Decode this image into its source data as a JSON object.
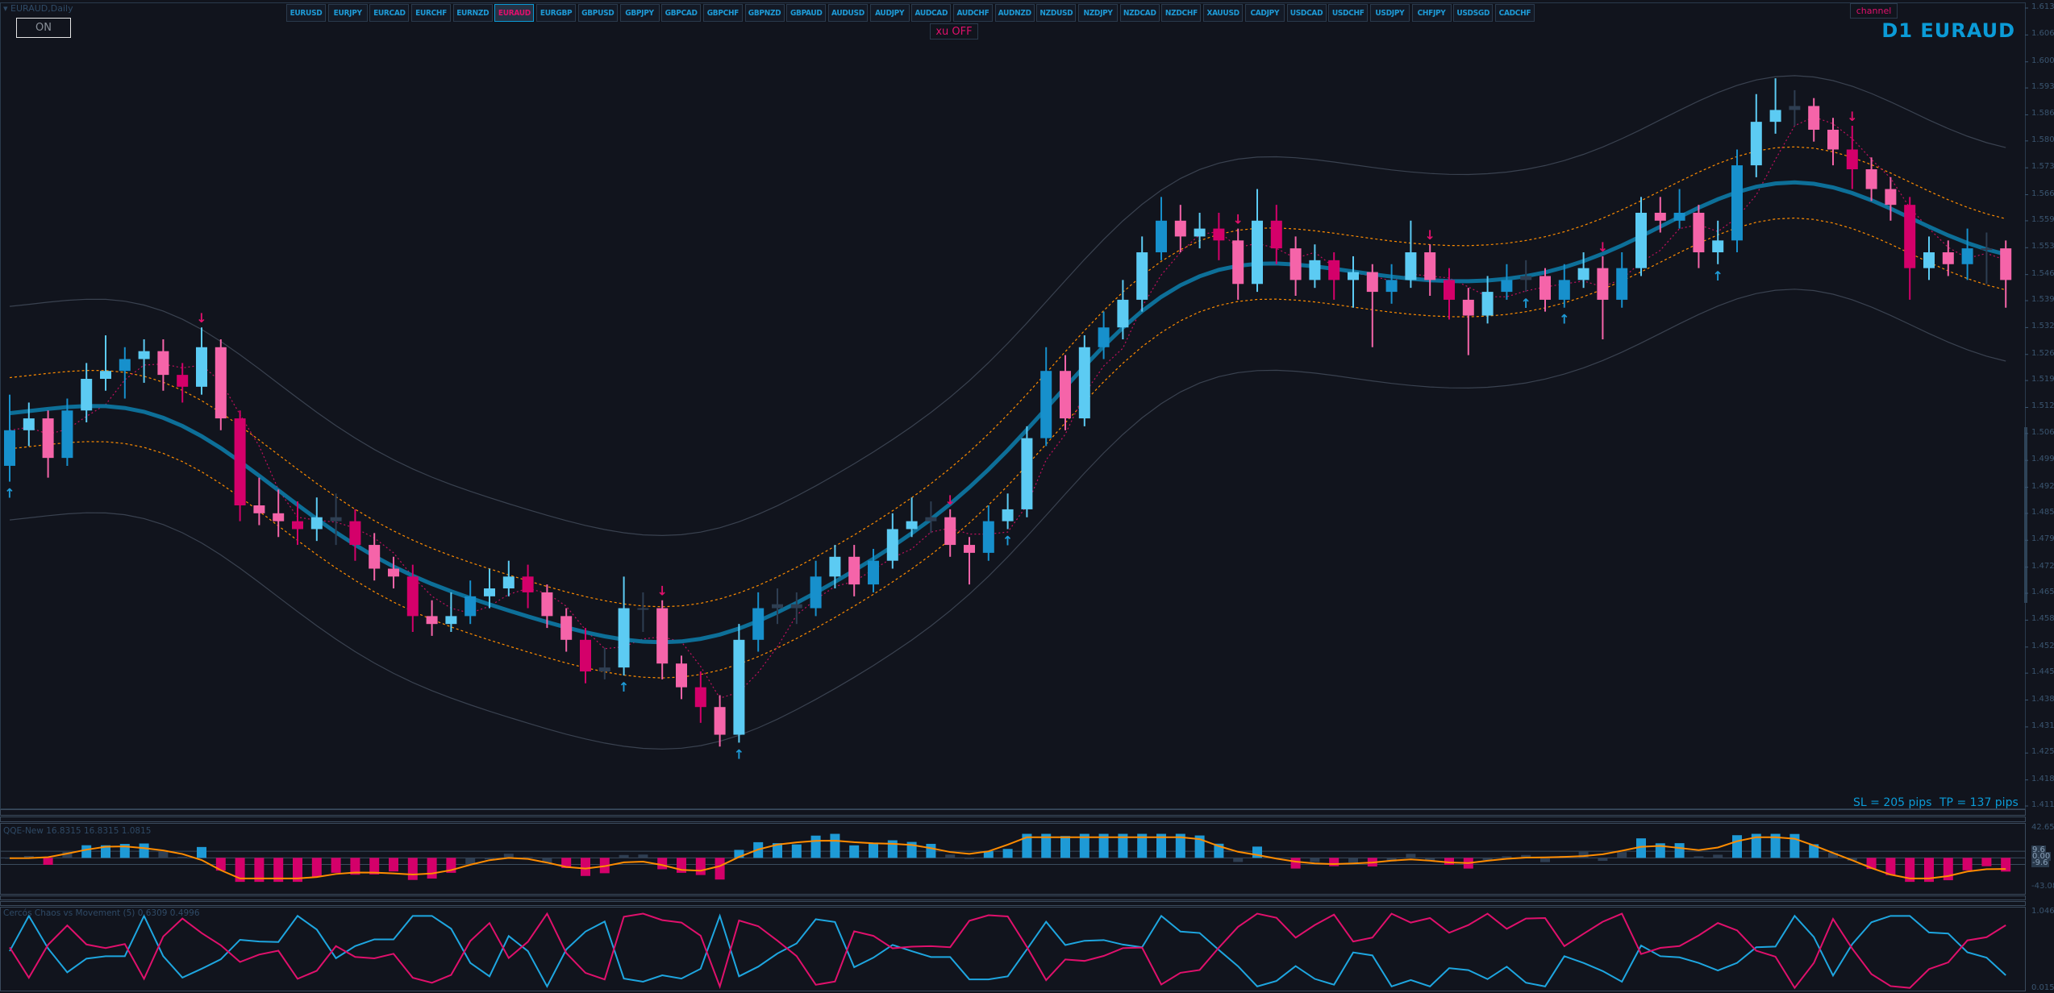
{
  "window": {
    "title": "EURAUD,Daily",
    "on_button": "ON",
    "xu_button": "xu OFF",
    "channel_button": "channel",
    "timeframe_label": "D1  EURAUD"
  },
  "symbols": [
    "EURUSD",
    "EURJPY",
    "EURCAD",
    "EURCHF",
    "EURNZD",
    "EURAUD",
    "EURGBP",
    "GBPUSD",
    "GBPJPY",
    "GBPCAD",
    "GBPCHF",
    "GBPNZD",
    "GBPAUD",
    "AUDUSD",
    "AUDJPY",
    "AUDCAD",
    "AUDCHF",
    "AUDNZD",
    "NZDUSD",
    "NZDJPY",
    "NZDCAD",
    "NZDCHF",
    "XAUUSD",
    "CADJPY",
    "USDCAD",
    "USDCHF",
    "USDJPY",
    "CHFJPY",
    "USDSGD",
    "CADCHF"
  ],
  "active_symbol": "EURAUD",
  "info": {
    "sl": "SL = 205 pips",
    "tp": "TP = 137 pips"
  },
  "colors": {
    "bg": "#11141d",
    "bull": "#5ccbf3",
    "bull_dark": "#1790cc",
    "bear": "#f564a9",
    "bear_dark": "#d4006a",
    "neutral": "#2e3e52",
    "mid": "#0d6f98",
    "orange": "#ff8c00",
    "accent": "#0b9bd7"
  },
  "chart_data": [
    {
      "type": "candlestick",
      "title": "EURAUD,Daily",
      "ylim": [
        1.41197,
        1.61377
      ],
      "y_ticks": [
        "1.61377",
        "1.60697",
        "1.60017",
        "1.59357",
        "1.58677",
        "1.58017",
        "1.57337",
        "1.56657",
        "1.55997",
        "1.55317",
        "1.54637",
        "1.53977",
        "1.53297",
        "1.52617",
        "1.51957",
        "1.51277",
        "1.50617",
        "1.49937",
        "1.49257",
        "1.48597",
        "1.47917",
        "1.47237",
        "1.46577",
        "1.45897",
        "1.45217",
        "1.44557",
        "1.43877",
        "1.43197",
        "1.42537",
        "1.41857",
        "1.41197"
      ],
      "ohlc": [
        [
          1.498,
          1.516,
          1.494,
          1.507
        ],
        [
          1.507,
          1.514,
          1.503,
          1.51
        ],
        [
          1.51,
          1.512,
          1.495,
          1.5
        ],
        [
          1.5,
          1.515,
          1.498,
          1.512
        ],
        [
          1.512,
          1.524,
          1.509,
          1.52
        ],
        [
          1.52,
          1.531,
          1.517,
          1.522
        ],
        [
          1.522,
          1.528,
          1.515,
          1.525
        ],
        [
          1.525,
          1.53,
          1.519,
          1.527
        ],
        [
          1.527,
          1.53,
          1.517,
          1.521
        ],
        [
          1.521,
          1.524,
          1.514,
          1.518
        ],
        [
          1.518,
          1.533,
          1.516,
          1.528
        ],
        [
          1.528,
          1.53,
          1.507,
          1.51
        ],
        [
          1.51,
          1.512,
          1.484,
          1.488
        ],
        [
          1.488,
          1.495,
          1.483,
          1.486
        ],
        [
          1.486,
          1.492,
          1.48,
          1.484
        ],
        [
          1.484,
          1.489,
          1.478,
          1.482
        ],
        [
          1.482,
          1.49,
          1.479,
          1.485
        ],
        [
          1.485,
          1.491,
          1.478,
          1.484
        ],
        [
          1.484,
          1.487,
          1.474,
          1.478
        ],
        [
          1.478,
          1.481,
          1.469,
          1.472
        ],
        [
          1.472,
          1.475,
          1.467,
          1.47
        ],
        [
          1.47,
          1.473,
          1.456,
          1.46
        ],
        [
          1.46,
          1.464,
          1.455,
          1.458
        ],
        [
          1.458,
          1.466,
          1.456,
          1.46
        ],
        [
          1.46,
          1.469,
          1.458,
          1.465
        ],
        [
          1.465,
          1.472,
          1.462,
          1.467
        ],
        [
          1.467,
          1.474,
          1.465,
          1.47
        ],
        [
          1.47,
          1.473,
          1.462,
          1.466
        ],
        [
          1.466,
          1.468,
          1.457,
          1.46
        ],
        [
          1.46,
          1.462,
          1.451,
          1.454
        ],
        [
          1.454,
          1.457,
          1.443,
          1.446
        ],
        [
          1.446,
          1.452,
          1.444,
          1.447
        ],
        [
          1.447,
          1.47,
          1.445,
          1.462
        ],
        [
          1.462,
          1.466,
          1.456,
          1.462
        ],
        [
          1.462,
          1.464,
          1.444,
          1.448
        ],
        [
          1.448,
          1.45,
          1.439,
          1.442
        ],
        [
          1.442,
          1.446,
          1.433,
          1.437
        ],
        [
          1.437,
          1.44,
          1.427,
          1.43
        ],
        [
          1.43,
          1.458,
          1.428,
          1.454
        ],
        [
          1.454,
          1.466,
          1.451,
          1.462
        ],
        [
          1.462,
          1.467,
          1.458,
          1.463
        ],
        [
          1.463,
          1.466,
          1.458,
          1.462
        ],
        [
          1.462,
          1.474,
          1.46,
          1.47
        ],
        [
          1.47,
          1.478,
          1.467,
          1.475
        ],
        [
          1.475,
          1.478,
          1.465,
          1.468
        ],
        [
          1.468,
          1.477,
          1.466,
          1.474
        ],
        [
          1.474,
          1.486,
          1.472,
          1.482
        ],
        [
          1.482,
          1.49,
          1.48,
          1.484
        ],
        [
          1.484,
          1.489,
          1.481,
          1.485
        ],
        [
          1.485,
          1.487,
          1.475,
          1.478
        ],
        [
          1.478,
          1.48,
          1.468,
          1.476
        ],
        [
          1.476,
          1.488,
          1.474,
          1.484
        ],
        [
          1.484,
          1.491,
          1.482,
          1.487
        ],
        [
          1.487,
          1.508,
          1.485,
          1.505
        ],
        [
          1.505,
          1.528,
          1.503,
          1.522
        ],
        [
          1.522,
          1.526,
          1.507,
          1.51
        ],
        [
          1.51,
          1.531,
          1.508,
          1.528
        ],
        [
          1.528,
          1.537,
          1.525,
          1.533
        ],
        [
          1.533,
          1.545,
          1.53,
          1.54
        ],
        [
          1.54,
          1.556,
          1.537,
          1.552
        ],
        [
          1.552,
          1.566,
          1.55,
          1.56
        ],
        [
          1.56,
          1.564,
          1.552,
          1.556
        ],
        [
          1.556,
          1.562,
          1.553,
          1.558
        ],
        [
          1.558,
          1.562,
          1.55,
          1.555
        ],
        [
          1.555,
          1.558,
          1.54,
          1.544
        ],
        [
          1.544,
          1.568,
          1.542,
          1.56
        ],
        [
          1.56,
          1.564,
          1.549,
          1.553
        ],
        [
          1.553,
          1.556,
          1.541,
          1.545
        ],
        [
          1.545,
          1.554,
          1.543,
          1.55
        ],
        [
          1.55,
          1.552,
          1.54,
          1.545
        ],
        [
          1.545,
          1.551,
          1.538,
          1.547
        ],
        [
          1.547,
          1.549,
          1.528,
          1.542
        ],
        [
          1.542,
          1.549,
          1.539,
          1.545
        ],
        [
          1.545,
          1.56,
          1.543,
          1.552
        ],
        [
          1.552,
          1.554,
          1.541,
          1.545
        ],
        [
          1.545,
          1.548,
          1.535,
          1.54
        ],
        [
          1.54,
          1.543,
          1.526,
          1.536
        ],
        [
          1.536,
          1.546,
          1.534,
          1.542
        ],
        [
          1.542,
          1.549,
          1.54,
          1.545
        ],
        [
          1.545,
          1.55,
          1.542,
          1.546
        ],
        [
          1.546,
          1.548,
          1.537,
          1.54
        ],
        [
          1.54,
          1.549,
          1.538,
          1.545
        ],
        [
          1.545,
          1.552,
          1.543,
          1.548
        ],
        [
          1.548,
          1.551,
          1.53,
          1.54
        ],
        [
          1.54,
          1.552,
          1.538,
          1.548
        ],
        [
          1.548,
          1.566,
          1.546,
          1.562
        ],
        [
          1.562,
          1.566,
          1.557,
          1.56
        ],
        [
          1.56,
          1.568,
          1.558,
          1.562
        ],
        [
          1.562,
          1.564,
          1.548,
          1.552
        ],
        [
          1.552,
          1.56,
          1.549,
          1.555
        ],
        [
          1.555,
          1.578,
          1.552,
          1.574
        ],
        [
          1.574,
          1.592,
          1.571,
          1.585
        ],
        [
          1.585,
          1.596,
          1.582,
          1.588
        ],
        [
          1.588,
          1.593,
          1.584,
          1.589
        ],
        [
          1.589,
          1.591,
          1.58,
          1.583
        ],
        [
          1.583,
          1.586,
          1.574,
          1.578
        ],
        [
          1.578,
          1.584,
          1.568,
          1.573
        ],
        [
          1.573,
          1.576,
          1.565,
          1.568
        ],
        [
          1.568,
          1.571,
          1.56,
          1.564
        ],
        [
          1.564,
          1.566,
          1.54,
          1.548
        ],
        [
          1.548,
          1.556,
          1.545,
          1.552
        ],
        [
          1.552,
          1.555,
          1.546,
          1.549
        ],
        [
          1.549,
          1.558,
          1.545,
          1.553
        ],
        [
          1.553,
          1.557,
          1.544,
          1.553
        ],
        [
          1.553,
          1.555,
          1.538,
          1.545
        ]
      ],
      "signals_down": [
        10,
        34,
        49,
        64,
        74,
        83,
        96
      ],
      "signals_up": [
        0,
        32,
        38,
        52,
        79,
        81,
        89
      ]
    },
    {
      "type": "histogram+line",
      "title": "QQE-New 16.8315 16.8315 1.0815",
      "ylim": [
        -43.082,
        42.6583
      ],
      "y_ticks": [
        "42.6583",
        "9.6",
        "0.00",
        "-9.6",
        "-43.082"
      ],
      "levels": [
        9.6,
        0,
        -9.6
      ]
    },
    {
      "type": "line",
      "title": "Cercós Chaos vs Movement (5) 0.6309 0.4996",
      "ylim": [
        0.0156,
        1.0469
      ],
      "y_ticks": [
        "1.0469",
        "0.0156"
      ]
    }
  ]
}
